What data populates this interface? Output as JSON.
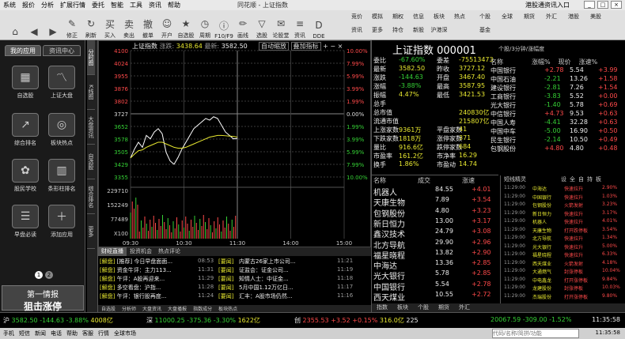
{
  "menu": [
    "系统",
    "报价",
    "分析",
    "扩展行情",
    "委托",
    "智能",
    "工具",
    "资讯",
    "帮助"
  ],
  "window_title": "同花顺 - 上证指数",
  "window_right": "港股通资讯入口",
  "toolbar": [
    {
      "label": "",
      "icon": "home-icon"
    },
    {
      "label": "",
      "icon": "back-icon"
    },
    {
      "label": "",
      "icon": "forward-icon"
    },
    {
      "label": "修正",
      "icon": "edit-icon"
    },
    {
      "label": "刷新",
      "icon": "refresh-icon"
    },
    {
      "label": "买入",
      "icon": "buy-icon"
    },
    {
      "label": "卖出",
      "icon": "sell-icon"
    },
    {
      "label": "撤单",
      "icon": "cancel-order-icon"
    },
    {
      "label": "开户",
      "icon": "account-icon"
    },
    {
      "label": "自选股",
      "icon": "star-icon"
    },
    {
      "label": "周期",
      "icon": "clock-icon"
    },
    {
      "label": "F10/F9",
      "icon": "info-icon"
    },
    {
      "label": "画线",
      "icon": "pen-icon"
    },
    {
      "label": "选股",
      "icon": "filter-icon"
    },
    {
      "label": "论股堂",
      "icon": "chat-icon"
    },
    {
      "label": "资讯",
      "icon": "news-icon"
    },
    {
      "label": "DDE",
      "icon": "dde-icon"
    }
  ],
  "toolbar_right": [
    "竞价",
    "模拟",
    "期权",
    "信息",
    "板块",
    "热点",
    "个股",
    "基金",
    "全球",
    "期货",
    "外汇",
    "港股",
    "美股",
    "资讯",
    "更多",
    "持仓",
    "新股",
    "沪港深"
  ],
  "sidebar": {
    "tabs": [
      "我的应用",
      "资讯中心"
    ],
    "apps": [
      {
        "label": "自选股",
        "icon": "grid-icon"
      },
      {
        "label": "上证大盘",
        "icon": "line-chart-icon"
      },
      {
        "label": "综合排名",
        "icon": "rank-icon"
      },
      {
        "label": "板块热点",
        "icon": "hot-icon"
      },
      {
        "label": "股民学校",
        "icon": "school-icon"
      },
      {
        "label": "条形柱排名",
        "icon": "bar-icon"
      },
      {
        "label": "早盘必读",
        "icon": "book-icon"
      },
      {
        "label": "添加应用",
        "icon": "plus-icon"
      }
    ],
    "pages": [
      "1",
      "2"
    ],
    "banner_line1": "第一情报",
    "banner_line2": "狙击涨停"
  },
  "vtabs": [
    "分时图",
    "K线图",
    "大盘资讯",
    "自选股",
    "综合排名",
    "更多"
  ],
  "chart": {
    "header_name": "上证指数",
    "header_price_label": "涨跌: ",
    "header_price": "3438.64",
    "header_latest_label": "最新: ",
    "header_latest": "3582.50",
    "controls": [
      "自动缩放",
      "叠加指标"
    ],
    "y_left": [
      "4100",
      "4024",
      "3955",
      "3876",
      "3802",
      "3727",
      "3652",
      "3578",
      "3505",
      "3429",
      "3355"
    ],
    "y_right": [
      "10.00%",
      "7.99%",
      "5.99%",
      "3.99%",
      "1.99%",
      "0.00%",
      "1.99%",
      "3.99%",
      "5.99%",
      "7.99%",
      "10.00%"
    ],
    "vol_labels": [
      "229710",
      "152249",
      "77489",
      "X100"
    ],
    "x_labels": [
      "09:30",
      "10:30",
      "11:30",
      "14:00",
      "15:00"
    ]
  },
  "news": {
    "tabs": [
      "财经直播",
      "投资机会",
      "热点评论"
    ],
    "items": [
      {
        "tag": "[解盘]",
        "title": "[推荐] 今日早盘面面...",
        "time": "08:53",
        "tag2": "[要闻]",
        "title2": "内蒙古26家上市公司...",
        "time2": "11:21"
      },
      {
        "tag": "[解盘]",
        "title": "资金牛评：主力113...",
        "time": "11:31",
        "tag2": "[要闻]",
        "title2": "证监会：证金公司...",
        "time2": "11:19"
      },
      {
        "tag": "[解盘]",
        "title": "午评：A股再迎来...",
        "time": "11:29",
        "tag2": "[要闻]",
        "title2": "知情人士：中证金...",
        "time2": "11:18"
      },
      {
        "tag": "[解盘]",
        "title": "多空看盘：沪指...",
        "time": "11:28",
        "tag2": "[要闻]",
        "title2": "5月中国1.12万亿日...",
        "time2": "11:17"
      },
      {
        "tag": "[解盘]",
        "title": "午评：银行股再度...",
        "time": "11:24",
        "tag2": "[要闻]",
        "title2": "汇丰：A股市场仍然...",
        "time2": "11:16"
      }
    ],
    "bottom_tabs": [
      "自选股",
      "分析师",
      "大盘资讯",
      "大盘播报",
      "指数成分",
      "板块热点"
    ]
  },
  "quote": {
    "title": "上证指数 000001",
    "subtitle": "个股/3分钟/涨幅度",
    "rows": [
      {
        "l1": "委比",
        "v1": "-67.60%",
        "l2": "委差",
        "v2": "-75513473"
      },
      {
        "l1": "最新",
        "v1": "3582.50",
        "l2": "昨收",
        "v2": "3727.12"
      },
      {
        "l1": "涨跌",
        "v1": "-144.63",
        "l2": "开盘",
        "v2": "3467.40"
      },
      {
        "l1": "涨幅",
        "v1": "-3.88%",
        "l2": "最高",
        "v2": "3587.95"
      },
      {
        "l1": "振幅",
        "v1": "4.47%",
        "l2": "最低",
        "v2": "3421.53"
      },
      {
        "l1": "总手",
        "v1": "",
        "l2": "",
        "v2": ""
      },
      {
        "l1": "总市值",
        "v1": "",
        "l2": "",
        "v2": "240830亿"
      },
      {
        "l1": "流通市值",
        "v1": "",
        "l2": "",
        "v2": "215807亿"
      },
      {
        "l1": "上涨家数",
        "v1": "9361万",
        "l2": "平盘家数",
        "v2": "41"
      },
      {
        "l1": "下跌家数",
        "v1": "1818万",
        "l2": "涨停家数",
        "v2": "371"
      },
      {
        "l1": "量比",
        "v1": "916.6亿",
        "l2": "跌停家数",
        "v2": "684"
      },
      {
        "l1": "市盈率",
        "v1": "161.2亿",
        "l2": "市净率",
        "v2": "16.29"
      },
      {
        "l1": "换手",
        "v1": "1.86%",
        "l2": "市盈动",
        "v2": "14.74"
      }
    ],
    "list_header": [
      "名称",
      "涨幅%",
      "现价",
      "涨速%"
    ],
    "list": [
      {
        "name": "中国银行",
        "chg": "+2.78",
        "price": "5.54",
        "spd": "+3.99"
      },
      {
        "name": "中国石油",
        "chg": "-2.21",
        "price": "13.26",
        "spd": "+1.58"
      },
      {
        "name": "建设银行",
        "chg": "-2.81",
        "price": "7.26",
        "spd": "+1.54"
      },
      {
        "name": "工商银行",
        "chg": "-3.83",
        "price": "5.52",
        "spd": "+0.00"
      },
      {
        "name": "光大银行",
        "chg": "-1.40",
        "price": "5.78",
        "spd": "+0.69"
      },
      {
        "name": "中信银行",
        "chg": "+4.73",
        "price": "9.53",
        "spd": "+0.63"
      },
      {
        "name": "中国人寿",
        "chg": "-4.41",
        "price": "32.28",
        "spd": "+0.63"
      },
      {
        "name": "中国中车",
        "chg": "-5.00",
        "price": "16.90",
        "spd": "+0.50"
      },
      {
        "name": "民生银行",
        "chg": "-2.14",
        "price": "10.50",
        "spd": "+0.49"
      },
      {
        "name": "包钢股份",
        "chg": "+4.80",
        "price": "4.80",
        "spd": "+0.48"
      }
    ],
    "sub_header": [
      "名称",
      "成交",
      "涨速"
    ],
    "sub_list": [
      {
        "name": "机器人",
        "price": "84.55",
        "spd": "+4.01"
      },
      {
        "name": "天康生物",
        "price": "7.89",
        "spd": "+3.54"
      },
      {
        "name": "包钢股份",
        "price": "4.80",
        "spd": "+3.23"
      },
      {
        "name": "新日恒力",
        "price": "13.00",
        "spd": "+3.17"
      },
      {
        "name": "鑫汉技术",
        "price": "24.79",
        "spd": "+3.08"
      },
      {
        "name": "北方导航",
        "price": "29.90",
        "spd": "+2.96"
      },
      {
        "name": "福星晓程",
        "price": "13.82",
        "spd": "+2.90"
      },
      {
        "name": "中海达",
        "price": "13.36",
        "spd": "+2.85"
      },
      {
        "name": "光大银行",
        "price": "5.78",
        "spd": "+2.85"
      },
      {
        "name": "中国银行",
        "price": "5.54",
        "spd": "+2.78"
      },
      {
        "name": "西天煤业",
        "price": "10.55",
        "spd": "+2.72"
      }
    ],
    "flash_title": "短线精灵",
    "flash": [
      {
        "t": "11:29:00",
        "n": "中海达",
        "e": "快速拉升",
        "v": "2.90%"
      },
      {
        "t": "11:29:00",
        "n": "中国银行",
        "e": "快速拉升",
        "v": "1.03%"
      },
      {
        "t": "11:29:00",
        "n": "包钢股份",
        "e": "火箭发射",
        "v": "3.23%"
      },
      {
        "t": "11:29:00",
        "n": "新日恒力",
        "e": "快速拉升",
        "v": "3.17%"
      },
      {
        "t": "11:29:00",
        "n": "机器人",
        "e": "快速拉升",
        "v": "4.01%"
      },
      {
        "t": "11:29:00",
        "n": "天康生物",
        "e": "打开跌停板",
        "v": "3.54%"
      },
      {
        "t": "11:29:00",
        "n": "北方导航",
        "e": "快速拉升",
        "v": "1.34%"
      },
      {
        "t": "11:29:00",
        "n": "光大银行",
        "e": "快速拉升",
        "v": "5.00%"
      },
      {
        "t": "11:29:00",
        "n": "福星晓程",
        "e": "快速拉升",
        "v": "6.33%"
      },
      {
        "t": "11:29:00",
        "n": "西天煤业",
        "e": "火箭发射",
        "v": "4.18%"
      },
      {
        "t": "11:29:00",
        "n": "大通燃气",
        "e": "封涨停板",
        "v": "10.04%"
      },
      {
        "t": "11:29:00",
        "n": "中电鑫龙",
        "e": "打开涨停板",
        "v": "9.84%"
      },
      {
        "t": "11:29:00",
        "n": "龙建股份",
        "e": "封涨停板",
        "v": "10.03%"
      },
      {
        "t": "11:29:00",
        "n": "杰瑞股份",
        "e": "打开涨停板",
        "v": "9.80%"
      }
    ],
    "flash_buttons": [
      "设",
      "全",
      "自",
      "持",
      "板"
    ],
    "footer_tabs": [
      "指数",
      "板块",
      "个股",
      "期货",
      "外汇"
    ]
  },
  "status": {
    "i1": "沪",
    "v1": "3582.50",
    "c1": "-144.63",
    "p1": "-3.88%",
    "m1": "4008亿",
    "i2": "深",
    "v2": "11000.25",
    "c2": "-375.36",
    "p2": "-3.30%",
    "m2": "1622亿",
    "i3": "创",
    "v3": "2355.53",
    "c3": "+3.52",
    "p3": "+0.15%",
    "m3": "316.0亿",
    "n3": "225",
    "v4": "20067.59",
    "c4": "-309.00",
    "p4": "-1.52%",
    "time": "11:35:58"
  },
  "status2": {
    "items": [
      "手机",
      "短信",
      "新闻",
      "电话",
      "帮助",
      "客服",
      "行情",
      "全球市场"
    ],
    "search_placeholder": "代码/名称/简拼/功能",
    "time": "11:35:58"
  }
}
